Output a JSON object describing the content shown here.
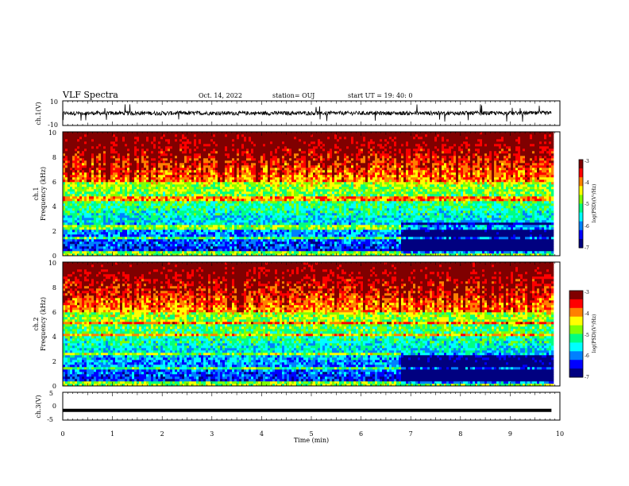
{
  "header": {
    "title": "VLF Spectra",
    "date": "Oct. 14, 2022",
    "station": "station= OUJ",
    "start": "start  UT =  19: 40: 0"
  },
  "chart_data": [
    {
      "type": "line",
      "panel": "ch1-waveform",
      "ylabel": "ch.1(V)",
      "ylim": [
        -10,
        10
      ],
      "yticks": [
        "10",
        "-10"
      ],
      "xlim": [
        0,
        10
      ],
      "data_end_min": 9.83,
      "baseline_v": 0,
      "color": "#000000"
    },
    {
      "type": "heatmap",
      "panel": "ch1-spectrogram",
      "ylabel": "ch.1",
      "ylabel2": "Frequency (kHz)",
      "ylim": [
        0,
        10
      ],
      "yticks": [
        "0",
        "2",
        "4",
        "6",
        "8",
        "10"
      ],
      "xlim": [
        0,
        10
      ],
      "data_end_min": 9.83,
      "colorbar": {
        "label": "log(PSD)(V²/Hz)",
        "range": [
          -7,
          -3
        ],
        "ticks": [
          "-3",
          "-4",
          "-5",
          "-6",
          "-7"
        ]
      },
      "features": {
        "quiet_band_khz": [
          0.2,
          2.6
        ],
        "quiet_band_after_min": 6.8,
        "noisy_lines_khz": [
          1.5,
          2.3,
          4.6
        ]
      }
    },
    {
      "type": "heatmap",
      "panel": "ch2-spectrogram",
      "ylabel": "ch.2",
      "ylabel2": "Frequency (kHz)",
      "ylim": [
        0,
        10
      ],
      "yticks": [
        "0",
        "2",
        "4",
        "6",
        "8",
        "10"
      ],
      "xlim": [
        0,
        10
      ],
      "data_end_min": 9.83,
      "colorbar": {
        "label": "log(PSD)(V²/Hz)",
        "range": [
          -7,
          -3
        ],
        "ticks": [
          "-3",
          "-4",
          "-5",
          "-6",
          "-7"
        ]
      },
      "features": {
        "quiet_band_khz": [
          0.2,
          2.6
        ],
        "quiet_band_after_min": 6.8,
        "noisy_lines_khz": [
          1.4,
          2.6,
          4.2,
          5.1
        ]
      }
    },
    {
      "type": "line",
      "panel": "ch3-waveform",
      "ylabel": "ch.3(V)",
      "ylim": [
        -5,
        5
      ],
      "yticks": [
        "5",
        "0",
        "-5"
      ],
      "xlim": [
        0,
        10
      ],
      "data_end_min": 9.83,
      "baseline_v": -1.5,
      "xlabel": "Time (min)",
      "xticks": [
        "0",
        "1",
        "2",
        "3",
        "4",
        "5",
        "6",
        "7",
        "8",
        "9",
        "10"
      ],
      "color": "#000000"
    }
  ],
  "palette": {
    "jet": [
      "#000080",
      "#0000ff",
      "#0080ff",
      "#00ffff",
      "#00ff80",
      "#80ff00",
      "#ffff00",
      "#ff8000",
      "#ff0000",
      "#800000"
    ],
    "axis": "#000000"
  }
}
